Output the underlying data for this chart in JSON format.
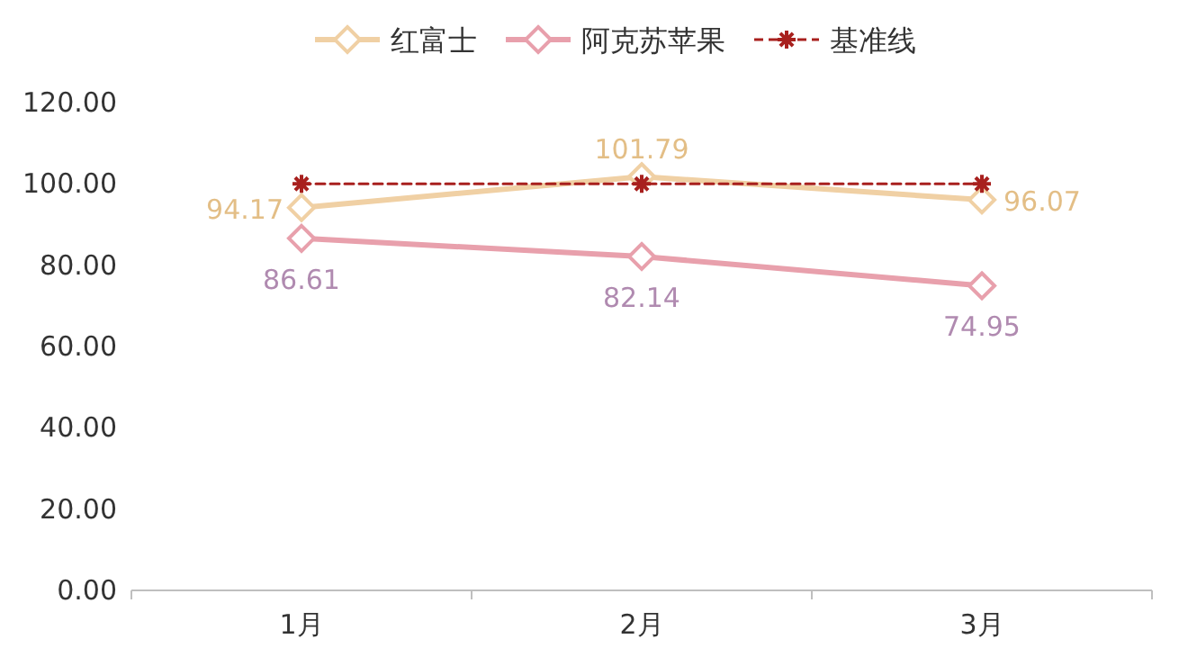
{
  "chart_data": {
    "type": "line",
    "categories": [
      "1月",
      "2月",
      "3月"
    ],
    "series": [
      {
        "name": "红富士",
        "color": "#f0d0a4",
        "values": [
          94.17,
          101.79,
          96.07
        ],
        "value_labels": [
          "94.17",
          "101.79",
          "96.07"
        ],
        "marker": "diamond",
        "line_style": "solid"
      },
      {
        "name": "阿克苏苹果",
        "color": "#e8a0ac",
        "values": [
          86.61,
          82.14,
          74.95
        ],
        "value_labels": [
          "86.61",
          "82.14",
          "74.95"
        ],
        "marker": "diamond",
        "line_style": "solid"
      },
      {
        "name": "基准线",
        "color": "#a8201e",
        "values": [
          100,
          100,
          100
        ],
        "marker": "cross",
        "line_style": "dashed"
      }
    ],
    "ylim": [
      0,
      120
    ],
    "yticks": [
      {
        "value": 0,
        "label": "0.00"
      },
      {
        "value": 20,
        "label": "20.00"
      },
      {
        "value": 40,
        "label": "40.00"
      },
      {
        "value": 60,
        "label": "60.00"
      },
      {
        "value": 80,
        "label": "80.00"
      },
      {
        "value": 100,
        "label": "100.00"
      },
      {
        "value": 120,
        "label": "120.00"
      }
    ],
    "legend": "top",
    "grid": false
  }
}
